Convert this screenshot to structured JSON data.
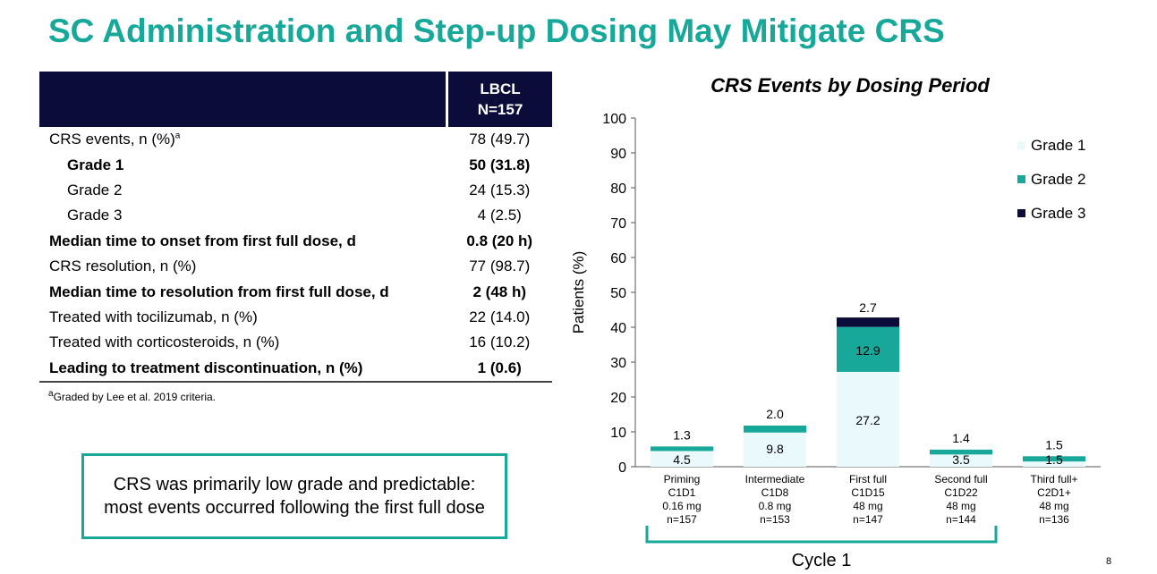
{
  "slide": {
    "title": "SC Administration and Step-up Dosing May Mitigate CRS",
    "page_number": "8"
  },
  "table": {
    "header_line1": "LBCL",
    "header_line2": "N=157",
    "rows": [
      {
        "label": "CRS events, n (%)",
        "sup": "a",
        "value": "78 (49.7)",
        "bold": false,
        "indent": false
      },
      {
        "label": "Grade 1",
        "value": "50 (31.8)",
        "bold": true,
        "indent": true
      },
      {
        "label": "Grade 2",
        "value": "24 (15.3)",
        "bold": false,
        "indent": true
      },
      {
        "label": "Grade 3",
        "value": "4 (2.5)",
        "bold": false,
        "indent": true
      },
      {
        "label": "Median time to onset from first full dose, d",
        "value": "0.8 (20 h)",
        "bold": true,
        "indent": false
      },
      {
        "label": "CRS resolution, n (%)",
        "value": "77 (98.7)",
        "bold": false,
        "indent": false
      },
      {
        "label": "Median time to resolution from first full dose, d",
        "value": "2 (48 h)",
        "bold": true,
        "indent": false
      },
      {
        "label": "Treated with tocilizumab, n (%)",
        "value": "22 (14.0)",
        "bold": false,
        "indent": false
      },
      {
        "label": "Treated with corticosteroids, n (%)",
        "value": "16 (10.2)",
        "bold": false,
        "indent": false
      },
      {
        "label": "Leading to treatment discontinuation, n (%)",
        "value": "1 (0.6)",
        "bold": true,
        "indent": false
      }
    ],
    "footnote_sup": "a",
    "footnote_text": "Graded by Lee et al. 2019 criteria."
  },
  "callout": {
    "text": "CRS was primarily low grade and predictable: most events occurred following the first full dose"
  },
  "chart_data": {
    "type": "bar",
    "stacked": true,
    "title": "CRS Events by Dosing Period",
    "ylabel": "Patients (%)",
    "xlabel": "",
    "ylim": [
      0,
      100
    ],
    "yticks": [
      0,
      10,
      20,
      30,
      40,
      50,
      60,
      70,
      80,
      90,
      100
    ],
    "grid": false,
    "legend_position": "right",
    "categories": [
      [
        "Priming",
        "C1D1",
        "0.16 mg",
        "n=157"
      ],
      [
        "Intermediate",
        "C1D8",
        "0.8 mg",
        "n=153"
      ],
      [
        "First full",
        "C1D15",
        "48 mg",
        "n=147"
      ],
      [
        "Second full",
        "C1D22",
        "48 mg",
        "n=144"
      ],
      [
        "Third full+",
        "C2D1+",
        "48 mg",
        "n=136"
      ]
    ],
    "series": [
      {
        "name": "Grade 1",
        "color": "#eaf9fb",
        "values": [
          4.5,
          9.8,
          27.2,
          3.5,
          1.5
        ],
        "labels": [
          "4.5",
          "9.8",
          "27.2",
          "3.5",
          "1.5"
        ]
      },
      {
        "name": "Grade 2",
        "color": "#17a89a",
        "values": [
          1.3,
          2.0,
          12.9,
          1.4,
          1.5
        ],
        "labels": [
          "1.3",
          "2.0",
          "12.9",
          "1.4",
          "1.5"
        ]
      },
      {
        "name": "Grade 3",
        "color": "#0c0c3a",
        "values": [
          0,
          0,
          2.7,
          0,
          0
        ],
        "labels": [
          "",
          "",
          "2.7",
          "",
          ""
        ]
      }
    ],
    "bracket_label": "Cycle 1",
    "bracket_span": [
      0,
      3
    ]
  }
}
